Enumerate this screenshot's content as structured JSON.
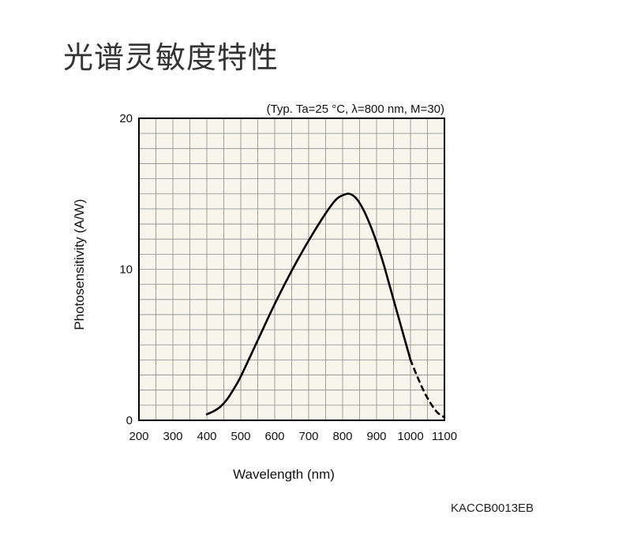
{
  "page": {
    "title": "光谱灵敏度特性",
    "document_code": "KACCB0013EB"
  },
  "chart_data": {
    "type": "line",
    "title": "",
    "condition_note": "(Typ. Ta=25 °C, λ=800 nm, M=30)",
    "xlabel": "Wavelength (nm)",
    "ylabel": "Photosensitivity (A/W)",
    "xlim": [
      200,
      1100
    ],
    "ylim": [
      0,
      20
    ],
    "x_ticks": [
      200,
      300,
      400,
      500,
      600,
      700,
      800,
      900,
      1000,
      1100
    ],
    "y_ticks": [
      0,
      10,
      20
    ],
    "grid": true,
    "plot_background": "#f7f5ec",
    "line_color": "#000000",
    "series": [
      {
        "style": "solid",
        "x": [
          400,
          420,
          440,
          460,
          480,
          500,
          550,
          600,
          650,
          700,
          750,
          780,
          800,
          820,
          840,
          860,
          880,
          900,
          920,
          940,
          960,
          980,
          1000
        ],
        "y": [
          0.4,
          0.6,
          0.9,
          1.4,
          2.1,
          2.9,
          5.3,
          7.7,
          9.9,
          11.9,
          13.7,
          14.6,
          14.9,
          15.0,
          14.7,
          14.0,
          13.0,
          11.8,
          10.4,
          8.8,
          7.2,
          5.6,
          4.0
        ]
      },
      {
        "style": "dashed",
        "x": [
          1000,
          1020,
          1040,
          1060,
          1080,
          1100
        ],
        "y": [
          4.0,
          2.9,
          1.9,
          1.1,
          0.5,
          0.2
        ]
      }
    ]
  }
}
